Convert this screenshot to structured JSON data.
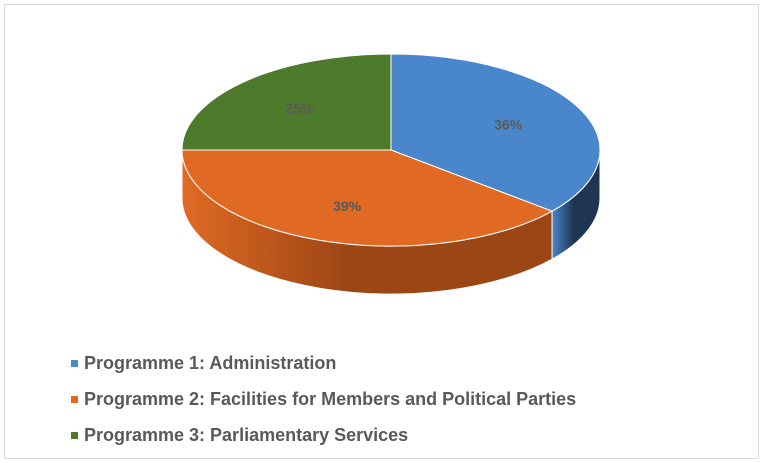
{
  "chart_data": {
    "type": "pie",
    "style": "3d",
    "categories": [
      "Programme 1: Administration",
      "Programme 2: Facilities for Members and Political Parties",
      "Programme 3: Parliamentary Services"
    ],
    "values": [
      36,
      39,
      25
    ],
    "data_labels": [
      "36%",
      "39%",
      "25%"
    ],
    "colors": [
      "#4a86cc",
      "#e06a24",
      "#4e7a2c"
    ],
    "side_colors": [
      "#1e3554",
      "#9c4515",
      "#2e4a1a"
    ],
    "legend_position": "bottom-left"
  }
}
